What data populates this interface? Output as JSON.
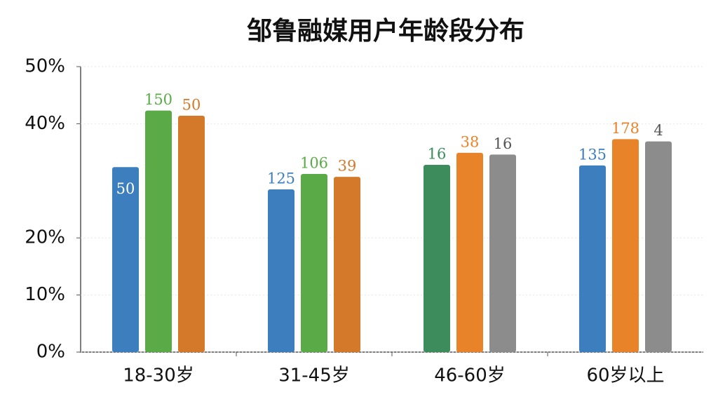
{
  "chart_data": {
    "type": "bar",
    "title": "邹鲁融媒用户年龄段分布",
    "categories": [
      "18-30岁",
      "31-45岁",
      "46-60岁",
      "60岁以上"
    ],
    "series": [
      {
        "colors": [
          "#3d7ebf",
          "#3d7ebf",
          "#3c8c5c",
          "#3d7ebf"
        ],
        "values": [
          32.4,
          28.5,
          32.8,
          32.7
        ],
        "annotations": [
          "50",
          "125",
          "16",
          "135"
        ]
      },
      {
        "colors": [
          "#5aab47",
          "#5aab47",
          "#e9832a",
          "#e9832a"
        ],
        "values": [
          42.3,
          31.2,
          34.9,
          37.3
        ],
        "annotations": [
          "150",
          "106",
          "38",
          "178"
        ]
      },
      {
        "colors": [
          "#d4792a",
          "#d4792a",
          "#8c8c8c",
          "#8c8c8c"
        ],
        "values": [
          41.4,
          30.7,
          34.6,
          36.9
        ],
        "annotations": [
          "50",
          "39",
          "16",
          "4"
        ]
      }
    ],
    "ylim": [
      0,
      50
    ],
    "yticks": [
      {
        "value": 0,
        "label": "0%"
      },
      {
        "value": 10,
        "label": "10%"
      },
      {
        "value": 20,
        "label": "20%"
      },
      {
        "value": 40,
        "label": "40%"
      },
      {
        "value": 50,
        "label": "50%"
      }
    ],
    "grid": true
  }
}
